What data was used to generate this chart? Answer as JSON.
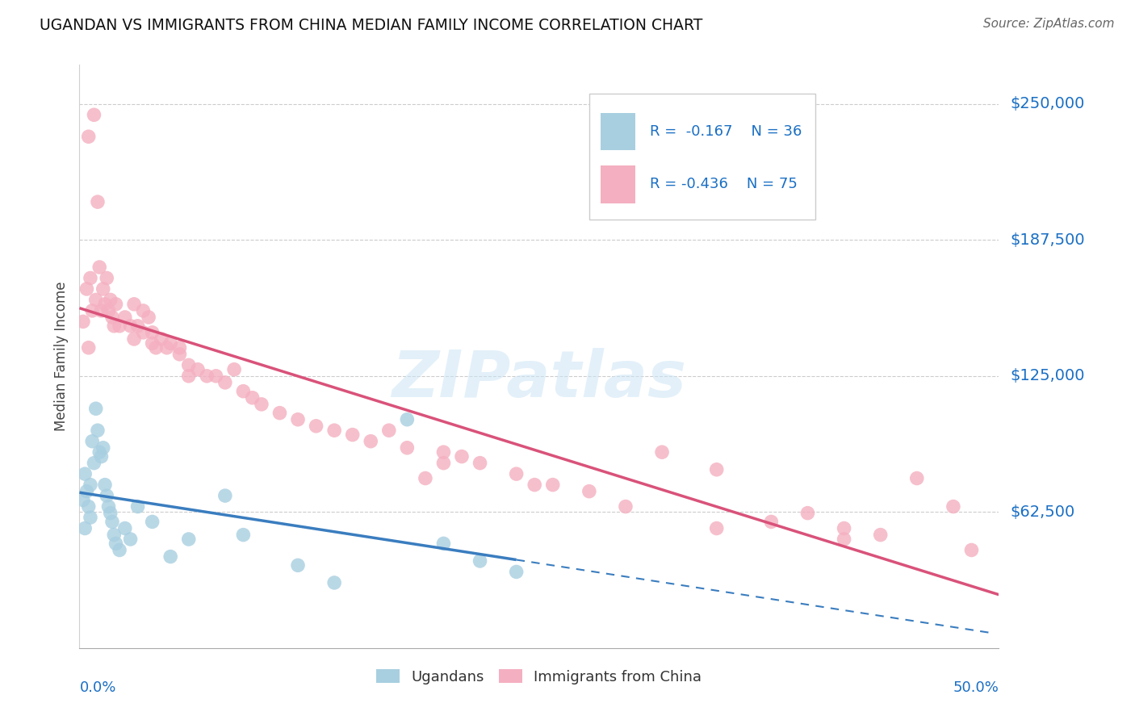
{
  "title": "UGANDAN VS IMMIGRANTS FROM CHINA MEDIAN FAMILY INCOME CORRELATION CHART",
  "source": "Source: ZipAtlas.com",
  "ylabel": "Median Family Income",
  "yticks": [
    0,
    62500,
    125000,
    187500,
    250000
  ],
  "ytick_labels": [
    "",
    "$62,500",
    "$125,000",
    "$187,500",
    "$250,000"
  ],
  "xlim": [
    0.0,
    0.505
  ],
  "ylim": [
    0,
    268000
  ],
  "watermark": "ZIPatlas",
  "legend_r1": "R =  -0.167",
  "legend_n1": "N = 36",
  "legend_r2": "R = -0.436",
  "legend_n2": "N = 75",
  "legend_label1": "Ugandans",
  "legend_label2": "Immigrants from China",
  "blue_color": "#a8cfe0",
  "pink_color": "#f4afc0",
  "blue_line_color": "#3a7dbf",
  "pink_line_color": "#d9527a",
  "accent_color": "#1a6fc4",
  "ugandan_x": [
    0.002,
    0.003,
    0.004,
    0.005,
    0.006,
    0.007,
    0.008,
    0.009,
    0.01,
    0.011,
    0.012,
    0.013,
    0.014,
    0.015,
    0.016,
    0.017,
    0.018,
    0.019,
    0.02,
    0.022,
    0.025,
    0.028,
    0.032,
    0.04,
    0.05,
    0.06,
    0.08,
    0.09,
    0.12,
    0.14,
    0.18,
    0.2,
    0.22,
    0.24,
    0.003,
    0.006
  ],
  "ugandan_y": [
    68000,
    80000,
    72000,
    65000,
    75000,
    95000,
    85000,
    110000,
    100000,
    90000,
    88000,
    92000,
    75000,
    70000,
    65000,
    62000,
    58000,
    52000,
    48000,
    45000,
    55000,
    50000,
    65000,
    58000,
    42000,
    50000,
    70000,
    52000,
    38000,
    30000,
    105000,
    48000,
    40000,
    35000,
    55000,
    60000
  ],
  "china_x": [
    0.002,
    0.004,
    0.005,
    0.006,
    0.007,
    0.008,
    0.009,
    0.01,
    0.011,
    0.012,
    0.013,
    0.014,
    0.015,
    0.016,
    0.017,
    0.018,
    0.019,
    0.02,
    0.022,
    0.025,
    0.028,
    0.03,
    0.032,
    0.035,
    0.038,
    0.04,
    0.042,
    0.045,
    0.048,
    0.05,
    0.055,
    0.06,
    0.065,
    0.07,
    0.075,
    0.08,
    0.085,
    0.09,
    0.095,
    0.1,
    0.11,
    0.12,
    0.13,
    0.14,
    0.15,
    0.16,
    0.17,
    0.18,
    0.19,
    0.2,
    0.21,
    0.22,
    0.24,
    0.26,
    0.28,
    0.3,
    0.32,
    0.35,
    0.38,
    0.4,
    0.42,
    0.44,
    0.46,
    0.49,
    0.005,
    0.03,
    0.035,
    0.04,
    0.055,
    0.06,
    0.2,
    0.25,
    0.35,
    0.42,
    0.48
  ],
  "china_y": [
    150000,
    165000,
    235000,
    170000,
    155000,
    245000,
    160000,
    205000,
    175000,
    155000,
    165000,
    158000,
    170000,
    155000,
    160000,
    152000,
    148000,
    158000,
    148000,
    152000,
    148000,
    142000,
    148000,
    145000,
    152000,
    145000,
    138000,
    142000,
    138000,
    140000,
    138000,
    130000,
    128000,
    125000,
    125000,
    122000,
    128000,
    118000,
    115000,
    112000,
    108000,
    105000,
    102000,
    100000,
    98000,
    95000,
    100000,
    92000,
    78000,
    90000,
    88000,
    85000,
    80000,
    75000,
    72000,
    65000,
    90000,
    82000,
    58000,
    62000,
    55000,
    52000,
    78000,
    45000,
    138000,
    158000,
    155000,
    140000,
    135000,
    125000,
    85000,
    75000,
    55000,
    50000,
    65000
  ]
}
